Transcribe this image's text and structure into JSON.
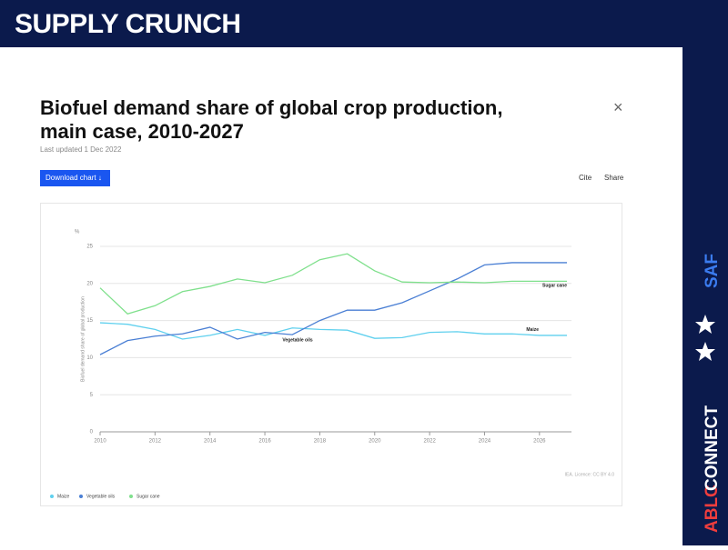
{
  "header": {
    "title": "SUPPLY CRUNCH"
  },
  "sidebar": {
    "brand_a": "ABLC",
    "brand_b": "CONNECT",
    "tag": "SAF"
  },
  "card": {
    "updated": "Last updated 1 Dec 2022",
    "download": "Download chart",
    "cite": "Cite",
    "share": "Share",
    "close": "×",
    "source": "IEA. Licence: CC BY 4.0"
  },
  "chart_data": {
    "type": "line",
    "title": "Biofuel demand share of global crop production, main case, 2010-2027",
    "yunit": "%",
    "ylabel": "Biofuel demand share of global production",
    "x": [
      2010,
      2011,
      2012,
      2013,
      2014,
      2015,
      2016,
      2017,
      2018,
      2019,
      2020,
      2021,
      2022,
      2023,
      2024,
      2025,
      2026,
      2027
    ],
    "xlim": [
      2010,
      2027
    ],
    "xticks": [
      2010,
      2012,
      2014,
      2016,
      2018,
      2020,
      2022,
      2024,
      2026
    ],
    "ylim": [
      0,
      25
    ],
    "yticks": [
      0,
      5,
      10,
      15,
      20,
      25
    ],
    "grid": true,
    "legend": "bottom",
    "series": [
      {
        "name": "Maize",
        "color": "#5fd0ee",
        "values": [
          14.7,
          14.5,
          13.8,
          12.5,
          13.0,
          13.8,
          13.0,
          14.0,
          13.8,
          13.7,
          12.6,
          12.7,
          13.4,
          13.5,
          13.2,
          13.2,
          13.0,
          13.0
        ]
      },
      {
        "name": "Vegetable oils",
        "color": "#4a7fd4",
        "values": [
          10.4,
          12.3,
          12.9,
          13.2,
          14.1,
          12.5,
          13.4,
          13.1,
          15.0,
          16.4,
          16.4,
          17.4,
          19.0,
          20.6,
          22.5,
          22.8,
          22.8,
          22.8
        ]
      },
      {
        "name": "Sugar cane",
        "color": "#7fe08c",
        "values": [
          19.4,
          15.9,
          17.0,
          18.9,
          19.6,
          20.6,
          20.1,
          21.1,
          23.2,
          24.0,
          21.7,
          20.2,
          20.1,
          20.2,
          20.1,
          20.3,
          20.3,
          20.3
        ]
      }
    ]
  }
}
